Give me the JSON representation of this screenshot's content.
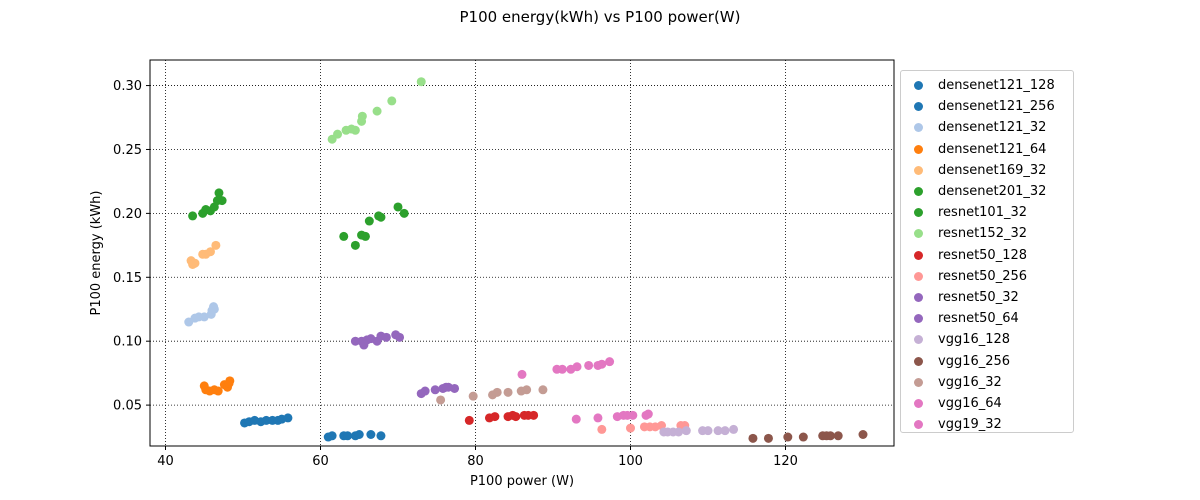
{
  "chart_data": {
    "type": "scatter",
    "title": "P100 energy(kWh) vs P100 power(W)",
    "xlabel": "P100 power (W)",
    "ylabel": "P100 energy (kWh)",
    "xlim": [
      38,
      134
    ],
    "ylim": [
      0.018,
      0.32
    ],
    "xticks": [
      40,
      60,
      80,
      100,
      120
    ],
    "yticks": [
      0.05,
      0.1,
      0.15,
      0.2,
      0.25,
      0.3
    ],
    "ytick_labels": [
      "0.05",
      "0.10",
      "0.15",
      "0.20",
      "0.25",
      "0.30"
    ],
    "grid": true,
    "legend_position": "outside-right",
    "series": [
      {
        "name": "densenet121_128",
        "color": "#1f77b4",
        "points": [
          [
            61,
            0.025
          ],
          [
            61.5,
            0.026
          ],
          [
            63,
            0.026
          ],
          [
            63.5,
            0.026
          ],
          [
            64.5,
            0.026
          ],
          [
            65,
            0.027
          ],
          [
            66.5,
            0.027
          ],
          [
            67.8,
            0.026
          ]
        ]
      },
      {
        "name": "densenet121_256",
        "color": "#1f77b4",
        "points": [
          [
            50.2,
            0.036
          ],
          [
            50.8,
            0.037
          ],
          [
            51.5,
            0.038
          ],
          [
            52.3,
            0.037
          ],
          [
            53,
            0.038
          ],
          [
            53.8,
            0.038
          ],
          [
            54.5,
            0.038
          ],
          [
            55,
            0.039
          ],
          [
            55.8,
            0.04
          ]
        ]
      },
      {
        "name": "densenet121_32",
        "color": "#aec7e8",
        "points": [
          [
            43,
            0.115
          ],
          [
            43.8,
            0.118
          ],
          [
            44.3,
            0.119
          ],
          [
            45,
            0.119
          ],
          [
            45.9,
            0.121
          ],
          [
            46,
            0.124
          ],
          [
            46.3,
            0.125
          ],
          [
            46.2,
            0.127
          ]
        ]
      },
      {
        "name": "densenet121_64",
        "color": "#ff7f0e",
        "points": [
          [
            45,
            0.065
          ],
          [
            45.2,
            0.062
          ],
          [
            45.7,
            0.061
          ],
          [
            46.3,
            0.062
          ],
          [
            46.8,
            0.061
          ],
          [
            47.6,
            0.066
          ],
          [
            48,
            0.064
          ],
          [
            48.2,
            0.067
          ],
          [
            48.3,
            0.069
          ]
        ]
      },
      {
        "name": "densenet169_32",
        "color": "#ffbb78",
        "points": [
          [
            43.3,
            0.163
          ],
          [
            43.5,
            0.16
          ],
          [
            43.8,
            0.161
          ],
          [
            44.8,
            0.168
          ],
          [
            45.2,
            0.168
          ],
          [
            45.8,
            0.17
          ],
          [
            46.5,
            0.175
          ]
        ]
      },
      {
        "name": "densenet201_32",
        "color": "#2ca02c",
        "points": [
          [
            44.8,
            0.2
          ],
          [
            45.2,
            0.203
          ],
          [
            45.8,
            0.202
          ],
          [
            46.3,
            0.205
          ],
          [
            46.7,
            0.21
          ],
          [
            46.9,
            0.216
          ],
          [
            47.3,
            0.21
          ]
        ]
      },
      {
        "name": "resnet101_32",
        "color": "#2ca02c",
        "points": [
          [
            43.5,
            0.198
          ],
          [
            63,
            0.182
          ],
          [
            64.5,
            0.175
          ],
          [
            65.3,
            0.183
          ],
          [
            65.8,
            0.182
          ],
          [
            66.3,
            0.194
          ],
          [
            67.5,
            0.198
          ],
          [
            67.8,
            0.197
          ],
          [
            70,
            0.205
          ],
          [
            70.8,
            0.2
          ]
        ]
      },
      {
        "name": "resnet152_32",
        "color": "#98df8a",
        "points": [
          [
            61.5,
            0.258
          ],
          [
            62.2,
            0.262
          ],
          [
            63.3,
            0.265
          ],
          [
            64,
            0.266
          ],
          [
            64.5,
            0.265
          ],
          [
            65.3,
            0.272
          ],
          [
            65.4,
            0.276
          ],
          [
            67.3,
            0.28
          ],
          [
            69.2,
            0.288
          ],
          [
            73,
            0.303
          ]
        ]
      },
      {
        "name": "resnet50_128",
        "color": "#d62728",
        "points": [
          [
            79.2,
            0.038
          ],
          [
            81.8,
            0.04
          ],
          [
            82.5,
            0.041
          ],
          [
            84.2,
            0.041
          ],
          [
            84.8,
            0.042
          ],
          [
            85.2,
            0.041
          ],
          [
            86.3,
            0.042
          ],
          [
            86.8,
            0.042
          ],
          [
            87.5,
            0.042
          ]
        ]
      },
      {
        "name": "resnet50_256",
        "color": "#ff9896",
        "points": [
          [
            96.3,
            0.031
          ],
          [
            100,
            0.032
          ],
          [
            101.8,
            0.033
          ],
          [
            102.5,
            0.033
          ],
          [
            103.2,
            0.033
          ],
          [
            104,
            0.034
          ],
          [
            106.5,
            0.034
          ],
          [
            107,
            0.034
          ]
        ]
      },
      {
        "name": "resnet50_32",
        "color": "#9467bd",
        "points": [
          [
            64.5,
            0.1
          ],
          [
            65.3,
            0.1
          ],
          [
            65.6,
            0.097
          ],
          [
            66,
            0.101
          ],
          [
            66.5,
            0.102
          ],
          [
            67.3,
            0.1
          ],
          [
            67.8,
            0.104
          ],
          [
            68.5,
            0.103
          ],
          [
            69.7,
            0.105
          ],
          [
            70.2,
            0.103
          ]
        ]
      },
      {
        "name": "resnet50_64",
        "color": "#9467bd",
        "points": [
          [
            73,
            0.059
          ],
          [
            73.5,
            0.061
          ],
          [
            74.8,
            0.062
          ],
          [
            75.8,
            0.063
          ],
          [
            76.2,
            0.064
          ],
          [
            76.5,
            0.064
          ],
          [
            77.3,
            0.063
          ]
        ]
      },
      {
        "name": "vgg16_128",
        "color": "#c5b0d5",
        "points": [
          [
            104.3,
            0.029
          ],
          [
            104.8,
            0.029
          ],
          [
            105.5,
            0.029
          ],
          [
            106.2,
            0.029
          ],
          [
            107.2,
            0.03
          ],
          [
            109.3,
            0.03
          ],
          [
            110,
            0.03
          ],
          [
            111.3,
            0.03
          ],
          [
            112.2,
            0.03
          ],
          [
            113.3,
            0.031
          ]
        ]
      },
      {
        "name": "vgg16_256",
        "color": "#8c564b",
        "points": [
          [
            115.8,
            0.024
          ],
          [
            117.8,
            0.024
          ],
          [
            120.3,
            0.025
          ],
          [
            122.3,
            0.025
          ],
          [
            124.8,
            0.026
          ],
          [
            125.3,
            0.026
          ],
          [
            125.8,
            0.026
          ],
          [
            126.8,
            0.026
          ],
          [
            130,
            0.027
          ]
        ]
      },
      {
        "name": "vgg16_32",
        "color": "#c49c94",
        "points": [
          [
            75.5,
            0.054
          ],
          [
            79.7,
            0.057
          ],
          [
            82.2,
            0.058
          ],
          [
            82.8,
            0.06
          ],
          [
            84.2,
            0.06
          ],
          [
            85.9,
            0.061
          ],
          [
            86.6,
            0.062
          ],
          [
            88.7,
            0.062
          ]
        ]
      },
      {
        "name": "vgg16_64",
        "color": "#e377c2",
        "points": [
          [
            93,
            0.039
          ],
          [
            95.8,
            0.04
          ],
          [
            98.3,
            0.041
          ],
          [
            99.1,
            0.042
          ],
          [
            99.6,
            0.042
          ],
          [
            100.3,
            0.042
          ],
          [
            102,
            0.042
          ],
          [
            102.3,
            0.043
          ]
        ]
      },
      {
        "name": "vgg19_32",
        "color": "#e377c2",
        "points": [
          [
            86,
            0.074
          ],
          [
            90.5,
            0.078
          ],
          [
            91.2,
            0.078
          ],
          [
            92.3,
            0.078
          ],
          [
            93.1,
            0.08
          ],
          [
            94.6,
            0.081
          ],
          [
            95.8,
            0.081
          ],
          [
            96.3,
            0.082
          ],
          [
            97.3,
            0.084
          ]
        ]
      }
    ]
  }
}
